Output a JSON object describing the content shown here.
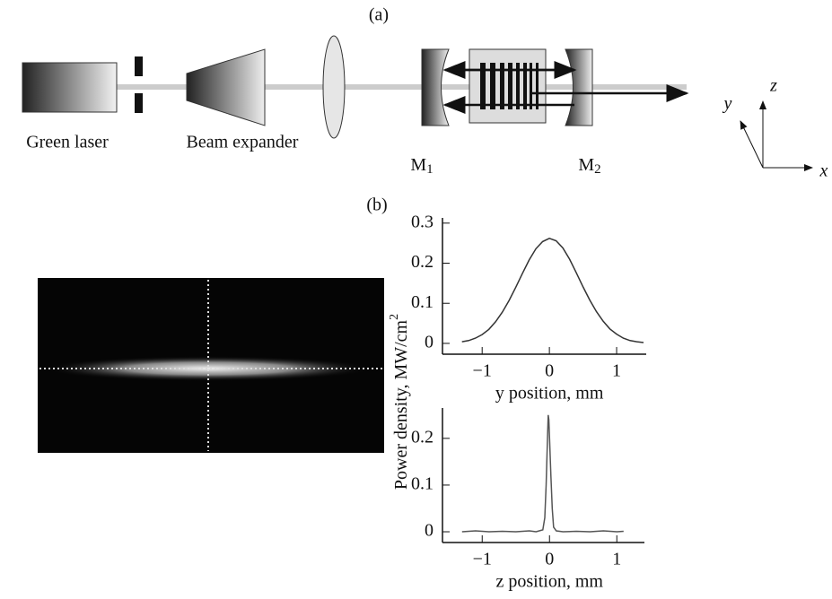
{
  "diagram": {
    "panel_a": "(a)",
    "laser_label": "Green laser",
    "expander_label": "Beam expander",
    "mirror1": {
      "base": "M",
      "sub": "1"
    },
    "mirror2": {
      "base": "M",
      "sub": "2"
    },
    "axes": {
      "x": "x",
      "y": "y",
      "z": "z"
    },
    "panel_b": "(b)"
  },
  "chart_data": [
    {
      "type": "line",
      "ylabel": {
        "text": "Power density, MW/cm",
        "sup": "2"
      },
      "xlabel": "y position, mm",
      "x": [
        -1.3,
        -1.2,
        -1.1,
        -1.0,
        -0.9,
        -0.8,
        -0.7,
        -0.6,
        -0.5,
        -0.4,
        -0.3,
        -0.2,
        -0.1,
        0,
        0.1,
        0.2,
        0.3,
        0.4,
        0.5,
        0.6,
        0.7,
        0.8,
        0.9,
        1.0,
        1.1,
        1.2,
        1.3,
        1.4
      ],
      "values": [
        0.004,
        0.007,
        0.013,
        0.022,
        0.035,
        0.054,
        0.078,
        0.107,
        0.14,
        0.175,
        0.208,
        0.236,
        0.254,
        0.262,
        0.256,
        0.238,
        0.21,
        0.176,
        0.141,
        0.108,
        0.079,
        0.055,
        0.036,
        0.023,
        0.013,
        0.007,
        0.004,
        0.002
      ],
      "color": "#333333",
      "xlim": [
        -1.59,
        1.44
      ],
      "ylim": [
        -0.027,
        0.313
      ],
      "xticks": [
        {
          "value": -1,
          "label": "−1"
        },
        0,
        1
      ],
      "yticks": [
        0,
        0.1,
        0.2,
        0.3
      ]
    },
    {
      "type": "line",
      "xlabel": "z position, mm",
      "x": [
        -1.3,
        -1.1,
        -0.9,
        -0.7,
        -0.5,
        -0.3,
        -0.2,
        -0.1,
        -0.07,
        -0.05,
        -0.03,
        -0.02,
        -0.01,
        0,
        0.02,
        0.04,
        0.06,
        0.1,
        0.2,
        0.4,
        0.6,
        0.8,
        1.0,
        1.1
      ],
      "values": [
        0,
        0.002,
        0,
        0.001,
        0,
        0.002,
        0,
        0.004,
        0.03,
        0.1,
        0.2,
        0.25,
        0.24,
        0.2,
        0.12,
        0.05,
        0.01,
        0.002,
        0,
        0.001,
        0,
        0.002,
        0,
        0.001
      ],
      "color": "#555555",
      "xlim": [
        -1.59,
        1.41
      ],
      "ylim": [
        -0.023,
        0.265
      ],
      "xticks": [
        {
          "value": -1,
          "label": "−1"
        },
        0,
        1
      ],
      "yticks": [
        0,
        0.1,
        0.2
      ]
    }
  ]
}
